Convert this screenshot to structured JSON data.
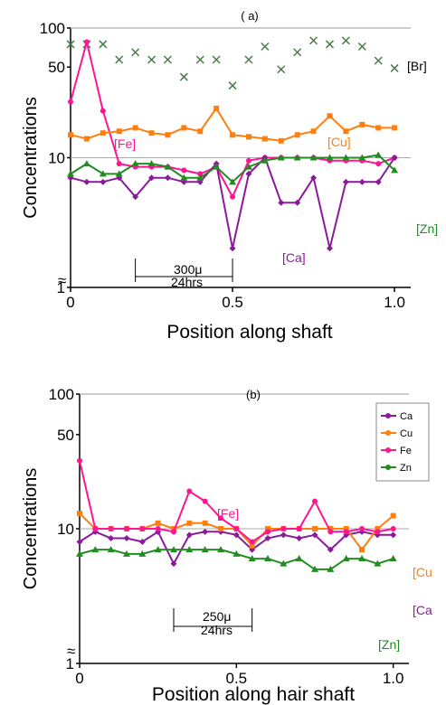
{
  "chart_data": [
    {
      "panel": "a",
      "type": "line",
      "label": "( a)",
      "xlabel": "Position along shaft",
      "ylabel": "Concentrations",
      "yscale": "log",
      "xlim": [
        0,
        1.05
      ],
      "ylim": [
        1,
        100
      ],
      "xticks": [
        "0",
        "0.5",
        "1.0"
      ],
      "yticks": [
        "1",
        "10",
        "50",
        "100"
      ],
      "x": [
        0,
        0.05,
        0.1,
        0.15,
        0.2,
        0.25,
        0.3,
        0.35,
        0.4,
        0.45,
        0.5,
        0.55,
        0.6,
        0.65,
        0.7,
        0.75,
        0.8,
        0.85,
        0.9,
        0.95,
        1.0
      ],
      "series": [
        {
          "name": "[Br]",
          "color": "#4a7a4a",
          "marker": "x",
          "line": false,
          "values": [
            75,
            75,
            75,
            57,
            65,
            57,
            57,
            42,
            57,
            57,
            36,
            57,
            72,
            48,
            65,
            80,
            75,
            80,
            72,
            56,
            49
          ]
        },
        {
          "name": "[Fe]",
          "color": "#ff1493",
          "marker": "circle",
          "values": [
            27,
            78,
            23,
            9,
            8.5,
            8.5,
            8.5,
            8,
            7.5,
            8.5,
            5,
            9.5,
            10,
            10,
            10,
            10,
            9.5,
            9.5,
            9.5,
            9,
            10
          ]
        },
        {
          "name": "[Cu]",
          "color": "#ff7f0e",
          "marker": "square",
          "values": [
            15,
            14,
            15.5,
            16,
            17,
            15.5,
            15,
            17,
            16,
            24,
            15,
            14.5,
            14,
            13.5,
            15,
            16,
            21,
            16,
            18,
            17,
            17
          ]
        },
        {
          "name": "[Ca]",
          "color": "#8a1a9a",
          "marker": "diamond",
          "values": [
            7,
            6.5,
            6.5,
            7,
            5,
            7,
            7,
            6.5,
            6.5,
            9,
            2,
            7.5,
            10,
            4.5,
            4.5,
            7,
            2,
            6.5,
            6.5,
            6.5,
            10
          ]
        },
        {
          "name": "[Zn]",
          "color": "#228b22",
          "marker": "triangle",
          "values": [
            7.5,
            9,
            7.5,
            7.5,
            9,
            9,
            8.5,
            7,
            7,
            8.5,
            6.5,
            8.5,
            9.5,
            10,
            10,
            10,
            10,
            10,
            10,
            10.5,
            8
          ]
        }
      ],
      "annotations": [
        {
          "text": "[Fe]",
          "color": "#ff1493"
        },
        {
          "text": "[Cu]",
          "color": "#ff7f0e"
        },
        {
          "text": "[Ca]",
          "color": "#8a1a9a"
        },
        {
          "text": "[Zn]",
          "color": "#228b22"
        },
        {
          "text": "[Br]",
          "color": "#000000"
        },
        {
          "text": "300μ",
          "color": "#000000"
        },
        {
          "text": "24hrs",
          "color": "#000000"
        }
      ],
      "axis_break": "≈"
    },
    {
      "panel": "b",
      "type": "line",
      "label": "(b)",
      "xlabel": "Position along hair shaft",
      "ylabel": "Concentrations",
      "yscale": "log",
      "xlim": [
        0,
        1.05
      ],
      "ylim": [
        1,
        100
      ],
      "xticks": [
        "0",
        "0.5",
        "1.0"
      ],
      "yticks": [
        "1",
        "10",
        "50",
        "100"
      ],
      "x": [
        0,
        0.05,
        0.1,
        0.15,
        0.2,
        0.25,
        0.3,
        0.35,
        0.4,
        0.45,
        0.5,
        0.55,
        0.6,
        0.65,
        0.7,
        0.75,
        0.8,
        0.85,
        0.9,
        0.95,
        1.0
      ],
      "legend": {
        "position": "top-right",
        "entries": [
          "Ca",
          "Cu",
          "Fe",
          "Zn"
        ]
      },
      "series": [
        {
          "name": "Ca",
          "color": "#8a1a9a",
          "marker": "diamond",
          "values": [
            8,
            9.5,
            8.5,
            8.5,
            8,
            9.5,
            5.5,
            9,
            9.5,
            9.5,
            9,
            7,
            8.5,
            9,
            8.5,
            9,
            7,
            9,
            9.5,
            9,
            9
          ]
        },
        {
          "name": "Cu",
          "color": "#ff7f0e",
          "marker": "square",
          "values": [
            13,
            10,
            10,
            10,
            10,
            11,
            10,
            11,
            11,
            10,
            10,
            7.5,
            10,
            10,
            10,
            10,
            10,
            10,
            7,
            10,
            12.5
          ]
        },
        {
          "name": "Fe",
          "color": "#ff1493",
          "marker": "circle",
          "values": [
            32,
            10,
            10,
            10,
            10,
            10,
            9.5,
            19,
            16,
            12,
            10,
            8,
            9.5,
            10,
            10,
            16,
            9.5,
            9.5,
            10,
            9.5,
            10
          ]
        },
        {
          "name": "Zn",
          "color": "#228b22",
          "marker": "triangle",
          "values": [
            6.5,
            7,
            7,
            6.5,
            6.5,
            7,
            7,
            7,
            7,
            7,
            6.5,
            6,
            6,
            5.5,
            6,
            5,
            5,
            6,
            6,
            5.5,
            6
          ]
        }
      ],
      "annotations": [
        {
          "text": "[Fe]",
          "color": "#ff1493"
        },
        {
          "text": "[Cu",
          "color": "#ff7f0e"
        },
        {
          "text": "[Ca",
          "color": "#8a1a9a"
        },
        {
          "text": "[Zn]",
          "color": "#228b22"
        },
        {
          "text": "250μ",
          "color": "#000000"
        },
        {
          "text": "24hrs",
          "color": "#000000"
        }
      ],
      "axis_break": "≈"
    }
  ]
}
